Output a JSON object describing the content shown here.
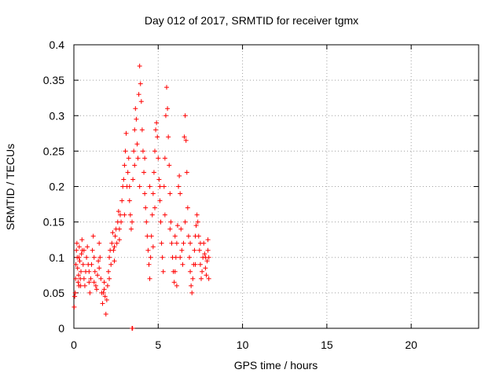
{
  "chart_data": {
    "type": "scatter",
    "title": "Day 012 of 2017, SRMTID for receiver tgmx",
    "xlabel": "GPS time / hours",
    "ylabel": "SRMTID / TECUs",
    "xlim": [
      0,
      24
    ],
    "ylim": [
      0,
      0.4
    ],
    "x_ticks": [
      0,
      5,
      10,
      15,
      20
    ],
    "x_tick_labels": [
      "0",
      "5",
      "10",
      "15",
      "20"
    ],
    "y_ticks": [
      0,
      0.05,
      0.1,
      0.15,
      0.2,
      0.25,
      0.3,
      0.35,
      0.4
    ],
    "y_tick_labels": [
      "0",
      "0.05",
      "0.1",
      "0.15",
      "0.2",
      "0.25",
      "0.3",
      "0.35",
      "0.4"
    ],
    "grid": true,
    "marker": "+",
    "color": "#ff0000",
    "series": [
      {
        "name": "SRMTID",
        "points": [
          [
            0.02,
            0.03
          ],
          [
            0.05,
            0.045
          ],
          [
            0.08,
            0.05
          ],
          [
            0.1,
            0.07
          ],
          [
            0.12,
            0.09
          ],
          [
            0.15,
            0.11
          ],
          [
            0.18,
            0.12
          ],
          [
            0.2,
            0.1
          ],
          [
            0.22,
            0.085
          ],
          [
            0.25,
            0.065
          ],
          [
            0.28,
            0.075
          ],
          [
            0.3,
            0.1
          ],
          [
            0.32,
            0.115
          ],
          [
            0.35,
            0.095
          ],
          [
            0.38,
            0.07
          ],
          [
            0.4,
            0.06
          ],
          [
            0.42,
            0.08
          ],
          [
            0.45,
            0.105
          ],
          [
            0.48,
            0.125
          ],
          [
            0.5,
            0.11
          ],
          [
            0.55,
            0.09
          ],
          [
            0.6,
            0.07
          ],
          [
            0.65,
            0.06
          ],
          [
            0.7,
            0.08
          ],
          [
            0.75,
            0.1
          ],
          [
            0.8,
            0.115
          ],
          [
            0.85,
            0.09
          ],
          [
            0.9,
            0.065
          ],
          [
            0.95,
            0.05
          ],
          [
            1.0,
            0.07
          ],
          [
            1.05,
            0.09
          ],
          [
            1.1,
            0.11
          ],
          [
            1.15,
            0.13
          ],
          [
            1.2,
            0.1
          ],
          [
            1.25,
            0.08
          ],
          [
            1.3,
            0.06
          ],
          [
            1.35,
            0.055
          ],
          [
            1.4,
            0.075
          ],
          [
            1.45,
            0.095
          ],
          [
            1.5,
            0.12
          ],
          [
            1.55,
            0.1
          ],
          [
            1.6,
            0.07
          ],
          [
            1.65,
            0.05
          ],
          [
            1.7,
            0.035
          ],
          [
            1.75,
            0.05
          ],
          [
            1.8,
            0.065
          ],
          [
            1.85,
            0.045
          ],
          [
            1.9,
            0.02
          ],
          [
            1.95,
            0.04
          ],
          [
            2.0,
            0.06
          ],
          [
            2.05,
            0.08
          ],
          [
            2.1,
            0.1
          ],
          [
            2.15,
            0.11
          ],
          [
            2.2,
            0.09
          ],
          [
            2.25,
            0.12
          ],
          [
            2.3,
            0.135
          ],
          [
            2.35,
            0.11
          ],
          [
            2.4,
            0.095
          ],
          [
            2.45,
            0.13
          ],
          [
            2.5,
            0.14
          ],
          [
            2.55,
            0.12
          ],
          [
            2.6,
            0.15
          ],
          [
            2.65,
            0.165
          ],
          [
            2.7,
            0.14
          ],
          [
            2.75,
            0.16
          ],
          [
            2.8,
            0.15
          ],
          [
            2.85,
            0.18
          ],
          [
            2.9,
            0.2
          ],
          [
            2.95,
            0.21
          ],
          [
            3.0,
            0.23
          ],
          [
            3.05,
            0.25
          ],
          [
            3.1,
            0.275
          ],
          [
            3.15,
            0.2
          ],
          [
            3.2,
            0.22
          ],
          [
            3.25,
            0.24
          ],
          [
            3.3,
            0.18
          ],
          [
            3.35,
            0.16
          ],
          [
            3.4,
            0.14
          ],
          [
            3.45,
            0.15
          ],
          [
            3.5,
            0.21
          ],
          [
            3.55,
            0.25
          ],
          [
            3.6,
            0.28
          ],
          [
            3.65,
            0.31
          ],
          [
            3.7,
            0.295
          ],
          [
            3.75,
            0.26
          ],
          [
            3.8,
            0.24
          ],
          [
            3.85,
            0.33
          ],
          [
            3.9,
            0.37
          ],
          [
            3.95,
            0.345
          ],
          [
            4.0,
            0.32
          ],
          [
            4.05,
            0.28
          ],
          [
            4.1,
            0.25
          ],
          [
            4.15,
            0.22
          ],
          [
            4.2,
            0.19
          ],
          [
            4.25,
            0.17
          ],
          [
            4.3,
            0.15
          ],
          [
            4.35,
            0.13
          ],
          [
            4.4,
            0.11
          ],
          [
            4.45,
            0.09
          ],
          [
            4.5,
            0.07
          ],
          [
            4.55,
            0.1
          ],
          [
            4.6,
            0.13
          ],
          [
            4.65,
            0.16
          ],
          [
            4.7,
            0.19
          ],
          [
            4.75,
            0.22
          ],
          [
            4.8,
            0.25
          ],
          [
            4.85,
            0.28
          ],
          [
            4.9,
            0.29
          ],
          [
            4.95,
            0.27
          ],
          [
            5.0,
            0.24
          ],
          [
            5.05,
            0.21
          ],
          [
            5.1,
            0.18
          ],
          [
            5.15,
            0.15
          ],
          [
            5.2,
            0.12
          ],
          [
            5.25,
            0.1
          ],
          [
            5.3,
            0.08
          ],
          [
            5.35,
            0.2
          ],
          [
            5.4,
            0.24
          ],
          [
            5.45,
            0.3
          ],
          [
            5.5,
            0.34
          ],
          [
            5.55,
            0.31
          ],
          [
            5.6,
            0.27
          ],
          [
            5.65,
            0.23
          ],
          [
            5.7,
            0.19
          ],
          [
            5.75,
            0.15
          ],
          [
            5.8,
            0.12
          ],
          [
            5.85,
            0.1
          ],
          [
            5.9,
            0.08
          ],
          [
            5.95,
            0.065
          ],
          [
            6.0,
            0.08
          ],
          [
            6.05,
            0.1
          ],
          [
            6.1,
            0.12
          ],
          [
            6.15,
            0.145
          ],
          [
            6.2,
            0.2
          ],
          [
            6.25,
            0.215
          ],
          [
            6.3,
            0.19
          ],
          [
            6.35,
            0.14
          ],
          [
            6.4,
            0.11
          ],
          [
            6.45,
            0.09
          ],
          [
            6.5,
            0.12
          ],
          [
            6.55,
            0.27
          ],
          [
            6.6,
            0.3
          ],
          [
            6.65,
            0.265
          ],
          [
            6.7,
            0.22
          ],
          [
            6.75,
            0.17
          ],
          [
            6.8,
            0.13
          ],
          [
            6.85,
            0.1
          ],
          [
            6.9,
            0.08
          ],
          [
            6.95,
            0.06
          ],
          [
            7.0,
            0.05
          ],
          [
            7.05,
            0.07
          ],
          [
            7.1,
            0.09
          ],
          [
            7.15,
            0.11
          ],
          [
            7.2,
            0.13
          ],
          [
            7.25,
            0.145
          ],
          [
            7.3,
            0.16
          ],
          [
            7.35,
            0.15
          ],
          [
            7.4,
            0.13
          ],
          [
            7.45,
            0.11
          ],
          [
            7.5,
            0.09
          ],
          [
            7.55,
            0.07
          ],
          [
            7.6,
            0.08
          ],
          [
            7.65,
            0.1
          ],
          [
            7.7,
            0.12
          ],
          [
            7.75,
            0.105
          ],
          [
            7.8,
            0.085
          ],
          [
            7.85,
            0.075
          ],
          [
            7.9,
            0.095
          ],
          [
            7.95,
            0.11
          ],
          [
            8.0,
            0.1
          ],
          [
            0.3,
            0.06
          ],
          [
            0.6,
            0.11
          ],
          [
            0.9,
            0.08
          ],
          [
            1.2,
            0.065
          ],
          [
            1.5,
            0.085
          ],
          [
            1.8,
            0.055
          ],
          [
            2.1,
            0.07
          ],
          [
            2.4,
            0.115
          ],
          [
            2.7,
            0.125
          ],
          [
            3.0,
            0.16
          ],
          [
            3.3,
            0.2
          ],
          [
            3.6,
            0.23
          ],
          [
            3.9,
            0.2
          ],
          [
            4.2,
            0.24
          ],
          [
            4.5,
            0.2
          ],
          [
            4.8,
            0.17
          ],
          [
            5.1,
            0.2
          ],
          [
            5.4,
            0.16
          ],
          [
            5.7,
            0.14
          ],
          [
            6.0,
            0.13
          ],
          [
            6.3,
            0.1
          ],
          [
            6.6,
            0.15
          ],
          [
            6.9,
            0.12
          ],
          [
            7.2,
            0.09
          ],
          [
            7.5,
            0.12
          ],
          [
            7.8,
            0.1
          ],
          [
            8.0,
            0.07
          ],
          [
            7.95,
            0.125
          ],
          [
            6.1,
            0.06
          ],
          [
            4.7,
            0.115
          ],
          [
            3.45,
            0.0
          ],
          [
            3.48,
            0.0
          ]
        ]
      }
    ]
  }
}
